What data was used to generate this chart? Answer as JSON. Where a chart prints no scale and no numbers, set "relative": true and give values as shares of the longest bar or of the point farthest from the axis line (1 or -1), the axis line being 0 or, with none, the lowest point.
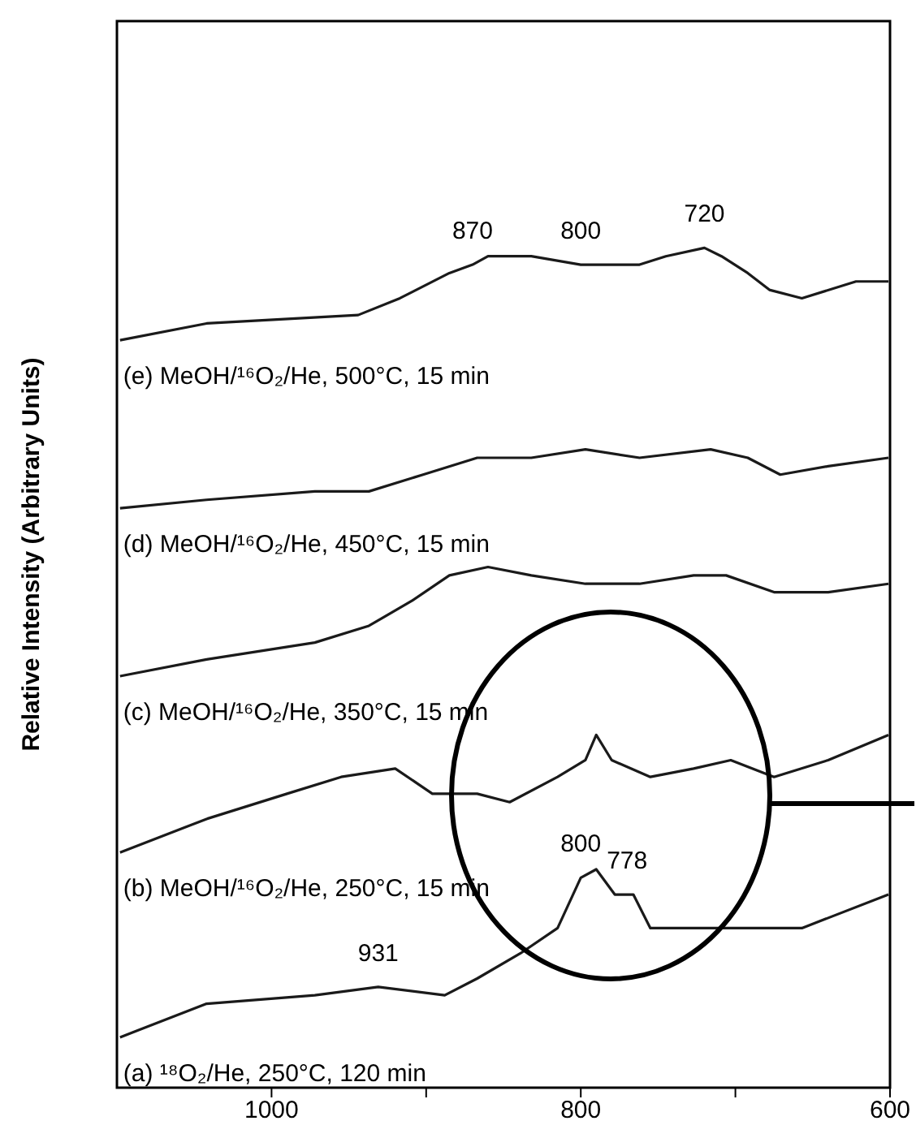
{
  "chart_data": {
    "type": "line",
    "relative": true,
    "ylabel": "Relative Intensity (Arbitrary Units)",
    "xlim": [
      1100,
      600
    ],
    "xticks": [
      {
        "value": 900,
        "label": null
      },
      1000,
      800,
      {
        "value": 700,
        "label": null
      },
      600
    ],
    "series": [
      {
        "name": "(e) MeOH/¹⁶O₂/He, 500°C, 15 min",
        "color": "#1a1a1a",
        "x": [
          1098,
          1042,
          944,
          917,
          885,
          870,
          860,
          832,
          800,
          762,
          745,
          720,
          709,
          692,
          678,
          657,
          622,
          601
        ],
        "values": [
          0.89,
          0.91,
          0.92,
          0.94,
          0.97,
          0.98,
          0.99,
          0.99,
          0.98,
          0.98,
          0.99,
          1.0,
          0.99,
          0.97,
          0.95,
          0.94,
          0.96,
          0.96
        ]
      },
      {
        "name": "(d) MeOH/¹⁶O₂/He, 450°C, 15 min",
        "color": "#1a1a1a",
        "x": [
          1098,
          1042,
          972,
          937,
          902,
          867,
          832,
          797,
          762,
          716,
          692,
          671,
          640,
          601
        ],
        "values": [
          0.69,
          0.7,
          0.71,
          0.71,
          0.73,
          0.75,
          0.75,
          0.76,
          0.75,
          0.76,
          0.75,
          0.73,
          0.74,
          0.75
        ]
      },
      {
        "name": "(c) MeOH/¹⁶O₂/He, 350°C, 15 min",
        "color": "#1a1a1a",
        "x": [
          1098,
          1042,
          972,
          937,
          909,
          885,
          860,
          832,
          797,
          762,
          727,
          706,
          675,
          640,
          601
        ],
        "values": [
          0.49,
          0.51,
          0.53,
          0.55,
          0.58,
          0.61,
          0.62,
          0.61,
          0.6,
          0.6,
          0.61,
          0.61,
          0.59,
          0.59,
          0.6
        ]
      },
      {
        "name": "(b) MeOH/¹⁶O₂/He, 250°C, 15 min",
        "color": "#1a1a1a",
        "x": [
          1098,
          1042,
          990,
          955,
          920,
          896,
          867,
          846,
          815,
          797,
          790,
          780,
          755,
          727,
          703,
          675,
          640,
          601
        ],
        "values": [
          0.28,
          0.32,
          0.35,
          0.37,
          0.38,
          0.35,
          0.35,
          0.34,
          0.37,
          0.39,
          0.42,
          0.39,
          0.37,
          0.38,
          0.39,
          0.37,
          0.39,
          0.42
        ]
      },
      {
        "name": "(a) ¹⁸O₂/He, 250°C, 120 min",
        "color": "#1a1a1a",
        "x": [
          1098,
          1042,
          972,
          931,
          888,
          867,
          839,
          815,
          800,
          790,
          778,
          766,
          755,
          727,
          692,
          657,
          601
        ],
        "values": [
          0.06,
          0.1,
          0.11,
          0.12,
          0.11,
          0.13,
          0.16,
          0.19,
          0.25,
          0.26,
          0.23,
          0.23,
          0.19,
          0.19,
          0.19,
          0.19,
          0.23
        ]
      }
    ],
    "annotations": [
      {
        "text": "870",
        "x": 870,
        "y": 0.98
      },
      {
        "text": "800",
        "x": 800,
        "y": 0.98
      },
      {
        "text": "720",
        "x": 720,
        "y": 1.0
      },
      {
        "text": "931",
        "x": 931,
        "y": 0.12
      },
      {
        "text": "800",
        "x": 800,
        "y": 0.25
      },
      {
        "text": "778",
        "x": 778,
        "y": 0.23
      }
    ]
  }
}
